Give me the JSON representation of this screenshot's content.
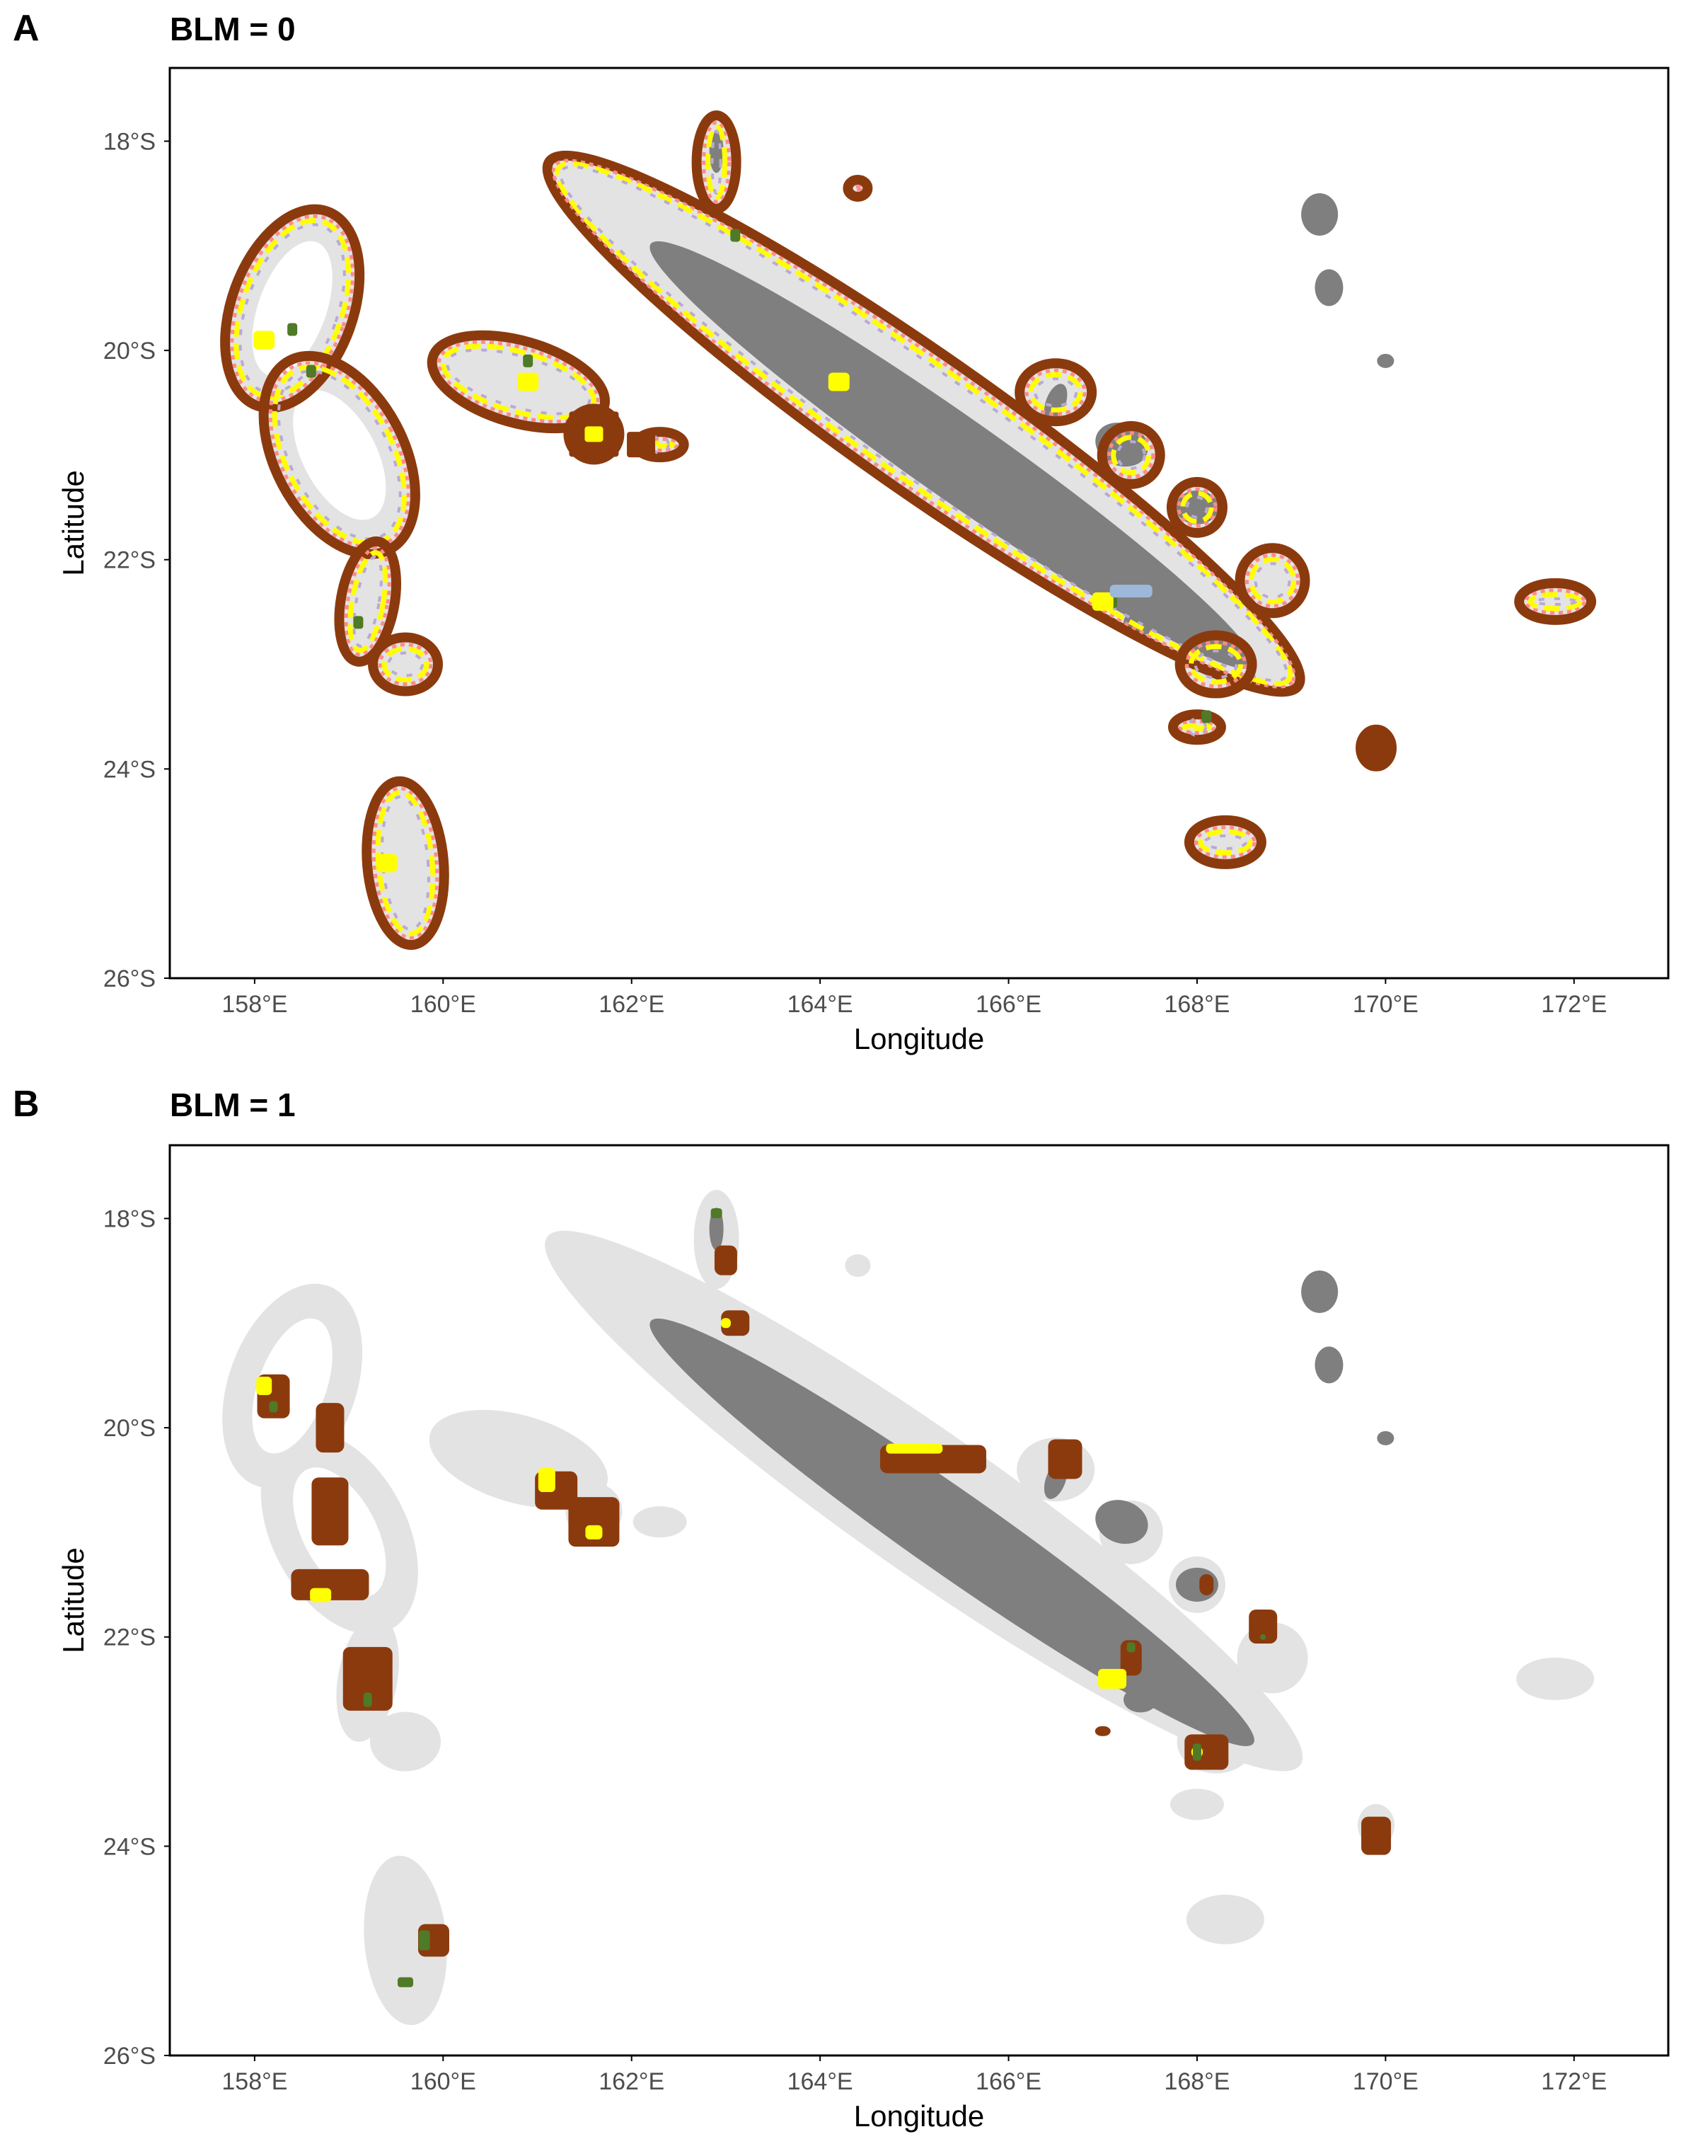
{
  "colors": {
    "land": "#7f7f7f",
    "reef_area": "#e3e3e3",
    "brown": "#8b3a0e",
    "yellow": "#ffff00",
    "green": "#4f7a28",
    "pink": "#ff8a8a",
    "lilac": "#b9a9d6",
    "blue": "#9db8d9",
    "axis": "#000000",
    "tick_text": "#4d4d4d"
  },
  "axes": {
    "x_label": "Longitude",
    "y_label": "Latitude",
    "x_ticks": [
      "158°E",
      "160°E",
      "162°E",
      "164°E",
      "166°E",
      "168°E",
      "170°E",
      "172°E"
    ],
    "y_ticks": [
      "18°S",
      "20°S",
      "22°S",
      "24°S",
      "26°S"
    ],
    "x_tick_values": [
      158,
      160,
      162,
      164,
      166,
      168,
      170,
      172
    ],
    "y_tick_values": [
      -18,
      -20,
      -22,
      -24,
      -26
    ],
    "lon_range": [
      157.1,
      173.0
    ],
    "lat_range": [
      -26.0,
      -17.3
    ]
  },
  "panels": [
    {
      "letter": "A",
      "title": "BLM = 0"
    },
    {
      "letter": "B",
      "title": "BLM = 1"
    }
  ]
}
